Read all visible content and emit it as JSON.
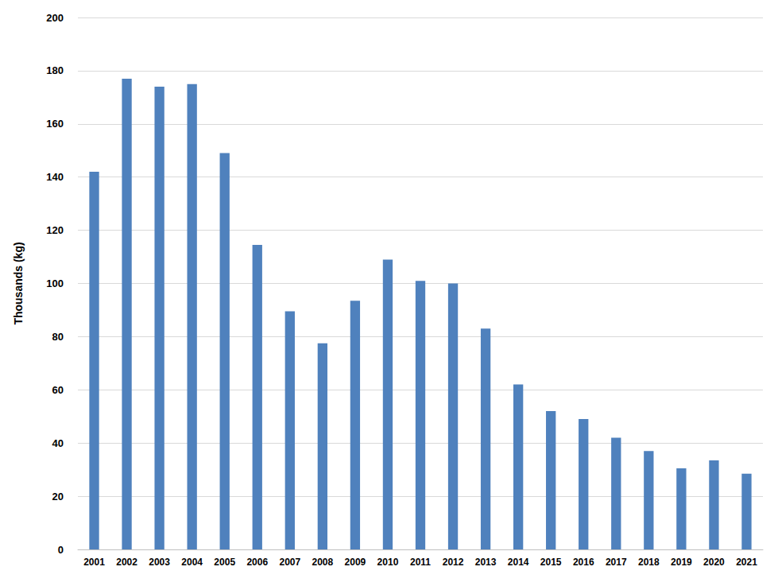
{
  "chart_data": {
    "type": "bar",
    "y_label": "Thousands (kg)",
    "categories": [
      "2001",
      "2002",
      "2003",
      "2004",
      "2005",
      "2006",
      "2007",
      "2008",
      "2009",
      "2010",
      "2011",
      "2012",
      "2013",
      "2014",
      "2015",
      "2016",
      "2017",
      "2018",
      "2019",
      "2020",
      "2021"
    ],
    "values": [
      142,
      177,
      174,
      175,
      149,
      114.5,
      89.5,
      77.5,
      93.5,
      109,
      101,
      100,
      83,
      62,
      52,
      49,
      42,
      37,
      30.5,
      33.5,
      28.5
    ],
    "color": "#4f81bd",
    "ylim": [
      0,
      200
    ],
    "yticks": [
      0,
      20,
      40,
      60,
      80,
      100,
      120,
      140,
      160,
      180,
      200
    ],
    "grid": true
  }
}
